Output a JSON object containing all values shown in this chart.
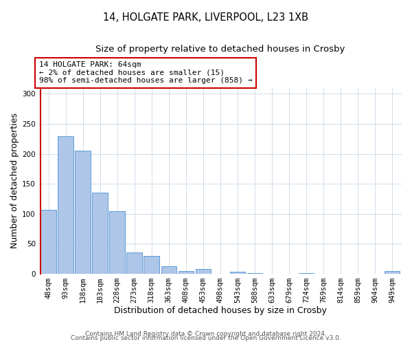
{
  "title_line1": "14, HOLGATE PARK, LIVERPOOL, L23 1XB",
  "title_line2": "Size of property relative to detached houses in Crosby",
  "xlabel": "Distribution of detached houses by size in Crosby",
  "ylabel": "Number of detached properties",
  "bar_labels": [
    "48sqm",
    "93sqm",
    "138sqm",
    "183sqm",
    "228sqm",
    "273sqm",
    "318sqm",
    "363sqm",
    "408sqm",
    "453sqm",
    "498sqm",
    "543sqm",
    "588sqm",
    "633sqm",
    "679sqm",
    "724sqm",
    "769sqm",
    "814sqm",
    "859sqm",
    "904sqm",
    "949sqm"
  ],
  "bar_values": [
    107,
    229,
    205,
    135,
    104,
    36,
    30,
    13,
    5,
    8,
    0,
    3,
    1,
    0,
    0,
    1,
    0,
    0,
    0,
    0,
    4
  ],
  "bar_color": "#aec6e8",
  "bar_edge_color": "#5b9bd5",
  "highlight_line_color": "#cc0000",
  "annotation_box_text": "14 HOLGATE PARK: 64sqm\n← 2% of detached houses are smaller (15)\n98% of semi-detached houses are larger (858) →",
  "annotation_box_edge_color": "#cc0000",
  "ylim": [
    0,
    310
  ],
  "yticks": [
    0,
    50,
    100,
    150,
    200,
    250,
    300
  ],
  "footer_line1": "Contains HM Land Registry data © Crown copyright and database right 2024.",
  "footer_line2": "Contains public sector information licensed under the Open Government Licence v3.0.",
  "background_color": "#ffffff",
  "grid_color": "#d0dce8",
  "title_fontsize": 10.5,
  "subtitle_fontsize": 9.5,
  "axis_label_fontsize": 9,
  "tick_fontsize": 7.5,
  "annotation_fontsize": 8,
  "footer_fontsize": 6.5
}
